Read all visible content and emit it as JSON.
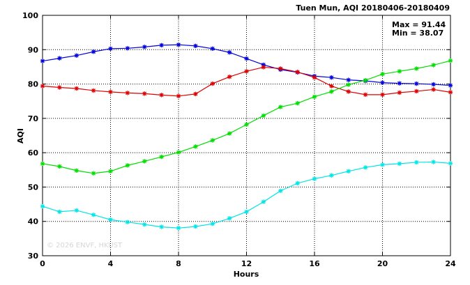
{
  "chart_data": {
    "type": "line",
    "title": "Tuen Mun, AQI 20180406-20180409",
    "xlabel": "Hours",
    "ylabel": "AQI",
    "xlim": [
      0,
      24
    ],
    "ylim": [
      30,
      100
    ],
    "xticks": [
      0,
      4,
      8,
      12,
      16,
      20,
      24
    ],
    "yticks": [
      30,
      40,
      50,
      60,
      70,
      80,
      90,
      100
    ],
    "grid": true,
    "annotations": [
      "Max = 91.44",
      "Min = 38.07"
    ],
    "watermark": "© 2026 ENVF, HKUST",
    "x": [
      0,
      1,
      2,
      3,
      4,
      5,
      6,
      7,
      8,
      9,
      10,
      11,
      12,
      13,
      14,
      15,
      16,
      17,
      18,
      19,
      20,
      21,
      22,
      23,
      24
    ],
    "series": [
      {
        "color": "#0000dd",
        "values": [
          86.7,
          87.5,
          88.3,
          89.4,
          90.3,
          90.4,
          90.8,
          91.3,
          91.44,
          91.1,
          90.3,
          89.2,
          87.4,
          85.6,
          84.2,
          83.4,
          82.3,
          81.9,
          81.2,
          80.9,
          80.4,
          80.2,
          80.1,
          79.9,
          79.6
        ]
      },
      {
        "color": "#dd0000",
        "values": [
          79.4,
          79.0,
          78.7,
          78.1,
          77.7,
          77.4,
          77.2,
          76.8,
          76.5,
          77.1,
          80.1,
          82.1,
          83.7,
          84.9,
          84.5,
          83.5,
          81.9,
          79.4,
          77.8,
          76.9,
          76.9,
          77.5,
          77.9,
          78.4,
          77.6
        ]
      },
      {
        "color": "#00dd00",
        "values": [
          56.8,
          56.0,
          54.8,
          54.0,
          54.6,
          56.3,
          57.5,
          58.8,
          60.1,
          61.8,
          63.6,
          65.6,
          68.2,
          70.8,
          73.3,
          74.4,
          76.3,
          77.8,
          79.8,
          81.1,
          82.9,
          83.7,
          84.5,
          85.5,
          86.8
        ]
      },
      {
        "color": "#00e5e5",
        "values": [
          44.4,
          42.8,
          43.2,
          41.9,
          40.5,
          39.8,
          39.1,
          38.4,
          38.07,
          38.5,
          39.3,
          40.9,
          42.8,
          45.7,
          48.9,
          51.1,
          52.4,
          53.4,
          54.6,
          55.7,
          56.5,
          56.8,
          57.2,
          57.3,
          56.9
        ]
      }
    ]
  }
}
